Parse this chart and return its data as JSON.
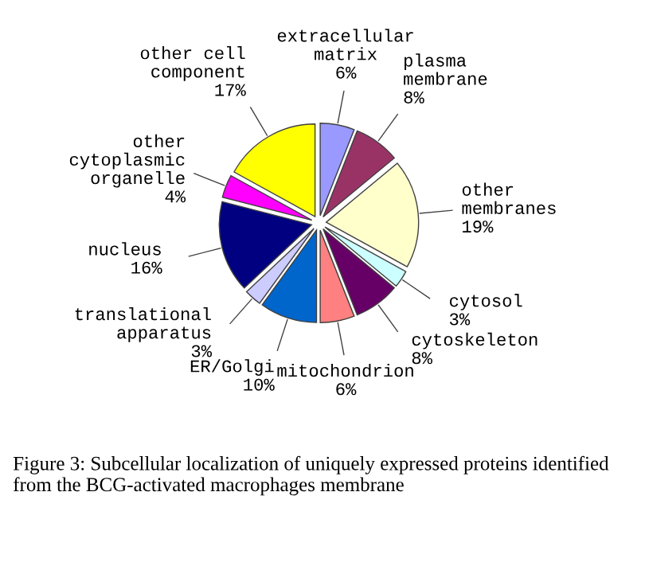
{
  "chart_data": {
    "type": "pie",
    "categories": [
      "extracellular\nmatrix",
      "plasma\nmembrane",
      "other\nmembranes",
      "cytosol",
      "cytoskeleton",
      "mitochondrion",
      "ER/Golgi",
      "translational\napparatus",
      "nucleus",
      "other\ncytoplasmic\norganelle",
      "other cell\ncomponent"
    ],
    "values": [
      6,
      8,
      19,
      3,
      8,
      6,
      10,
      3,
      16,
      4,
      17
    ],
    "colors": [
      "#9999ff",
      "#993366",
      "#ffffcc",
      "#ccffff",
      "#660066",
      "#ff8080",
      "#0066cc",
      "#ccccff",
      "#000080",
      "#ff00ff",
      "#ffff00"
    ],
    "value_labels": [
      "6%",
      "8%",
      "19%",
      "3%",
      "8%",
      "6%",
      "10%",
      "3%",
      "16%",
      "4%",
      "17%"
    ],
    "annotations": [
      "Figure 3: Subcellular localization of uniquely expressed proteins identified from the BCG-activated macrophages membrane"
    ]
  }
}
